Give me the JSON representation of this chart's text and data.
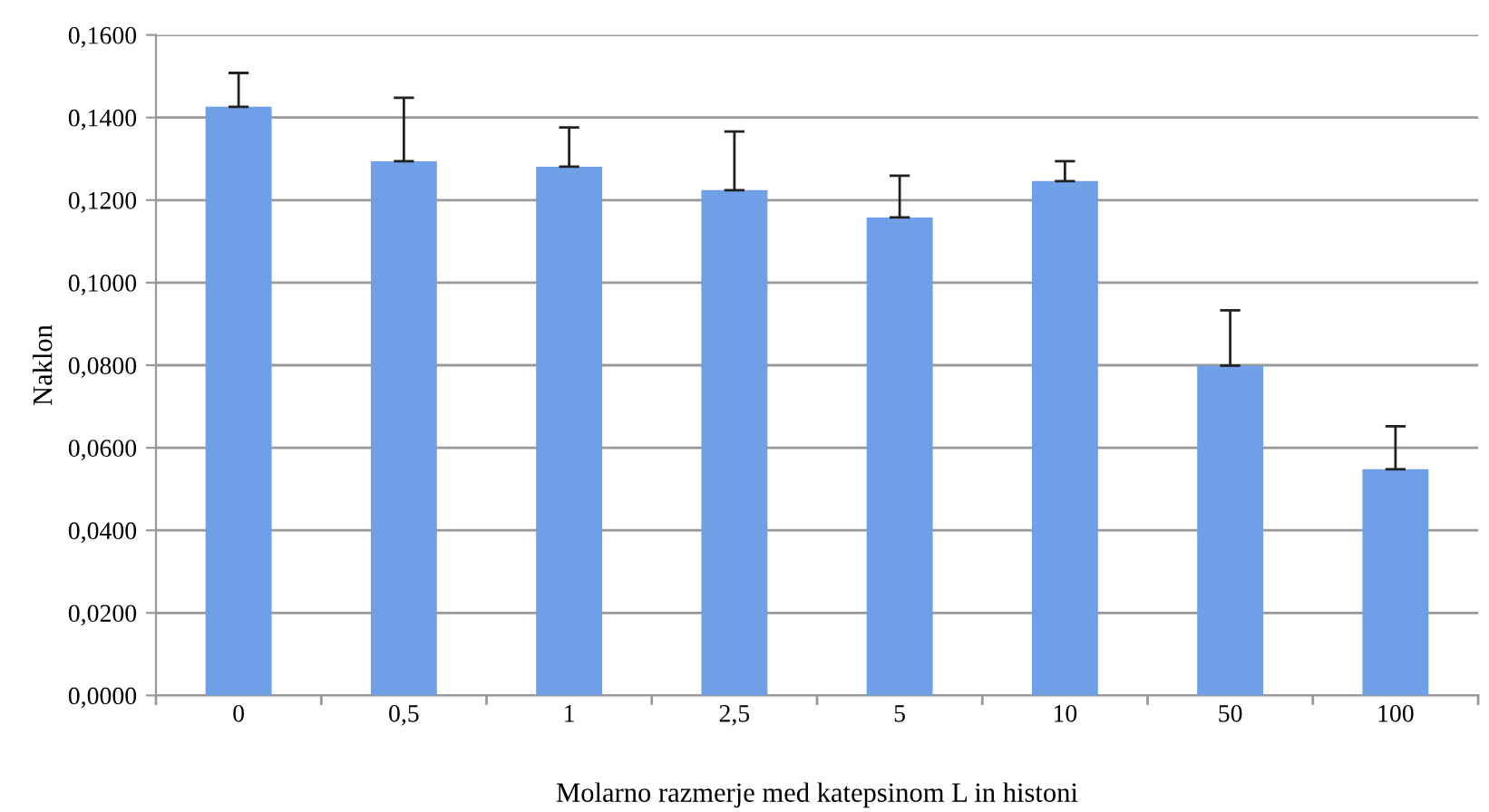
{
  "chart_data": {
    "type": "bar",
    "xlabel": "Molarno razmerje med katepsinom L in histoni",
    "ylabel": "Naklon",
    "categories": [
      "0",
      "0,5",
      "1",
      "2,5",
      "5",
      "10",
      "50",
      "100"
    ],
    "values": [
      0.1426,
      0.1294,
      0.1281,
      0.1224,
      0.1158,
      0.1246,
      0.0799,
      0.0548
    ],
    "errors": [
      [
        0.1426,
        0.1508
      ],
      [
        0.1294,
        0.1448
      ],
      [
        0.1281,
        0.1376
      ],
      [
        0.1224,
        0.1366
      ],
      [
        0.1158,
        0.1259
      ],
      [
        0.1246,
        0.1294
      ],
      [
        0.0799,
        0.0933
      ],
      [
        0.0548,
        0.0652
      ]
    ],
    "color": "#6f9fe6",
    "ylim": [
      0,
      0.16
    ],
    "yticks": [
      {
        "value": 0,
        "label": "0,0000"
      },
      {
        "value": 0.02,
        "label": "0,0200"
      },
      {
        "value": 0.04,
        "label": "0,0400"
      },
      {
        "value": 0.06,
        "label": "0,0600"
      },
      {
        "value": 0.08,
        "label": "0,0800"
      },
      {
        "value": 0.1,
        "label": "0,1000"
      },
      {
        "value": 0.12,
        "label": "0,1200"
      },
      {
        "value": 0.14,
        "label": "0,1400"
      },
      {
        "value": 0.16,
        "label": "0,1600"
      }
    ],
    "grid": "y",
    "legend": false
  }
}
